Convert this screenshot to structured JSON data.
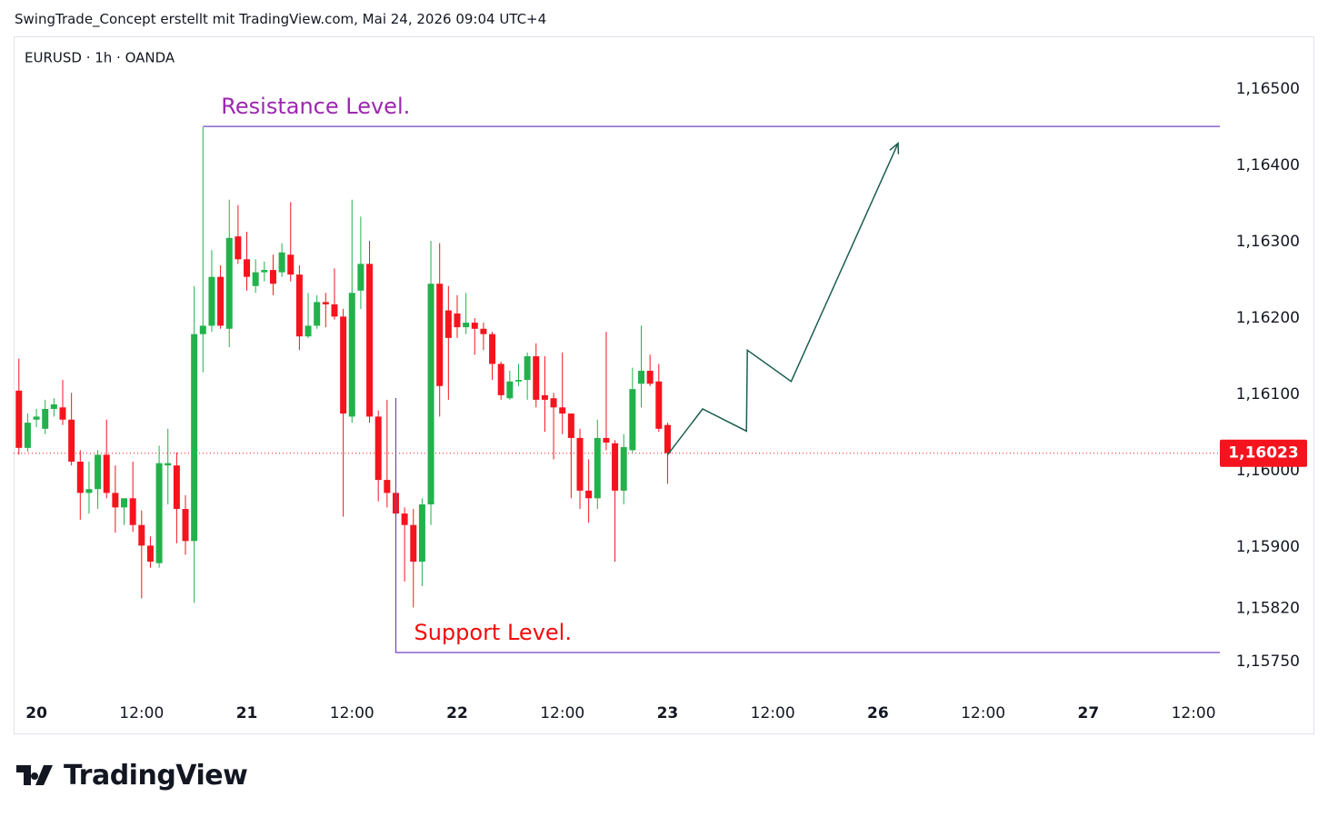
{
  "header": {
    "title": "SwingTrade_Concept erstellt mit TradingView.com, Mai 24, 2026 09:04 UTC+4"
  },
  "logo": {
    "text": "TradingView"
  },
  "chart_data": {
    "type": "candlestick",
    "title": "EURUSD · 1h · OANDA",
    "up_color": "#22b24c",
    "down_color": "#f5141e",
    "x": [
      -2,
      -1,
      0,
      1,
      2,
      3,
      4,
      5,
      6,
      7,
      8,
      9,
      10,
      11,
      12,
      13,
      14,
      15,
      16,
      17,
      18,
      19,
      20,
      21,
      22,
      23,
      24,
      25,
      26,
      27,
      28,
      29,
      30,
      31,
      32,
      33,
      34,
      35,
      36,
      37,
      38,
      39,
      40,
      41,
      42,
      43,
      44,
      45,
      46,
      47,
      48,
      49,
      50,
      51,
      52,
      53,
      54,
      55,
      56,
      57,
      58,
      59,
      60,
      61,
      62,
      63,
      64,
      65,
      66,
      67,
      68,
      69,
      70,
      71,
      72
    ],
    "open": [
      1.16105,
      1.1603,
      1.16067,
      1.16055,
      1.16081,
      1.16083,
      1.16067,
      1.16012,
      1.15971,
      1.15976,
      1.16021,
      1.15971,
      1.15952,
      1.15964,
      1.15929,
      1.15902,
      1.15879,
      1.16007,
      1.16007,
      1.1595,
      1.15908,
      1.16179,
      1.1619,
      1.16254,
      1.16186,
      1.16307,
      1.16277,
      1.16242,
      1.1626,
      1.16263,
      1.1626,
      1.16283,
      1.16257,
      1.16176,
      1.1619,
      1.16221,
      1.16218,
      1.16202,
      1.16071,
      1.16236,
      1.16271,
      1.16071,
      1.15988,
      1.15971,
      1.15944,
      1.15929,
      1.15881,
      1.15956,
      1.16245,
      1.1621,
      1.16206,
      1.16188,
      1.16194,
      1.16186,
      1.16179,
      1.1614,
      1.16095,
      1.16117,
      1.16119,
      1.1615,
      1.16099,
      1.16095,
      1.16083,
      1.16075,
      1.16043,
      1.15974,
      1.15964,
      1.16043,
      1.16036,
      1.15974,
      1.16027,
      1.16114,
      1.16131,
      1.16117,
      1.1606
    ],
    "high": [
      1.16147,
      1.16075,
      1.16081,
      1.16093,
      1.16095,
      1.16119,
      1.16102,
      1.16027,
      1.16012,
      1.16027,
      1.16067,
      1.16007,
      1.15964,
      1.16012,
      1.15948,
      1.15914,
      1.16033,
      1.16055,
      1.16024,
      1.15968,
      1.16242,
      1.1645,
      1.16289,
      1.16269,
      1.16355,
      1.16348,
      1.16313,
      1.16277,
      1.16274,
      1.16283,
      1.16298,
      1.16352,
      1.16269,
      1.16233,
      1.1623,
      1.16233,
      1.16265,
      1.16212,
      1.16355,
      1.16333,
      1.16301,
      1.16079,
      1.16093,
      1.16007,
      1.15952,
      1.1595,
      1.15964,
      1.16301,
      1.16298,
      1.16242,
      1.1623,
      1.16233,
      1.162,
      1.16194,
      1.16182,
      1.16143,
      1.16131,
      1.1614,
      1.16155,
      1.16167,
      1.1615,
      1.16102,
      1.16155,
      1.16075,
      1.16055,
      1.16015,
      1.16067,
      1.16182,
      1.1604,
      1.16048,
      1.16135,
      1.1619,
      1.16152,
      1.1614,
      1.16063
    ],
    "low": [
      1.16021,
      1.16025,
      1.16057,
      1.16048,
      1.16071,
      1.1606,
      1.16007,
      1.15936,
      1.15944,
      1.1595,
      1.15964,
      1.15919,
      1.15929,
      1.1592,
      1.15833,
      1.15873,
      1.15873,
      1.15956,
      1.15905,
      1.1589,
      1.15827,
      1.16129,
      1.16182,
      1.16186,
      1.16162,
      1.16271,
      1.16236,
      1.16233,
      1.16248,
      1.1623,
      1.16254,
      1.16248,
      1.16158,
      1.16174,
      1.16186,
      1.16188,
      1.16198,
      1.1594,
      1.16063,
      1.16212,
      1.16063,
      1.1596,
      1.15952,
      1.15762,
      1.15855,
      1.15821,
      1.15849,
      1.15929,
      1.16071,
      1.16093,
      1.16174,
      1.16179,
      1.16152,
      1.16158,
      1.16119,
      1.16093,
      1.16093,
      1.16111,
      1.16093,
      1.16083,
      1.16051,
      1.16015,
      1.16048,
      1.15964,
      1.1595,
      1.15932,
      1.1595,
      1.16027,
      1.15881,
      1.15956,
      1.16024,
      1.16083,
      1.16111,
      1.16051,
      1.15983
    ],
    "close": [
      1.1603,
      1.16063,
      1.16071,
      1.16081,
      1.16087,
      1.16067,
      1.16012,
      1.15971,
      1.15976,
      1.16021,
      1.15971,
      1.15952,
      1.15964,
      1.15929,
      1.15902,
      1.15881,
      1.1601,
      1.1601,
      1.1595,
      1.15908,
      1.16179,
      1.1619,
      1.16254,
      1.1619,
      1.16305,
      1.16277,
      1.16254,
      1.1626,
      1.16263,
      1.16245,
      1.16286,
      1.16257,
      1.16176,
      1.1619,
      1.16221,
      1.16218,
      1.16202,
      1.16075,
      1.16233,
      1.16271,
      1.16071,
      1.15988,
      1.15971,
      1.15944,
      1.15929,
      1.15881,
      1.15956,
      1.16245,
      1.16111,
      1.16174,
      1.16188,
      1.16194,
      1.16186,
      1.16179,
      1.1614,
      1.16099,
      1.16117,
      1.16119,
      1.1615,
      1.16093,
      1.16093,
      1.16083,
      1.16075,
      1.16043,
      1.15974,
      1.15964,
      1.16043,
      1.16037,
      1.15974,
      1.16031,
      1.16107,
      1.16131,
      1.16114,
      1.16055,
      1.16023
    ],
    "xlim": [
      -2.6,
      135
    ],
    "ylim": [
      1.15712,
      1.16569
    ],
    "xticks": [
      {
        "value": 0,
        "label": "20"
      },
      {
        "value": 12,
        "label": "12:00"
      },
      {
        "value": 24,
        "label": "21"
      },
      {
        "value": 36,
        "label": "12:00"
      },
      {
        "value": 48,
        "label": "22"
      },
      {
        "value": 60,
        "label": "12:00"
      },
      {
        "value": 72,
        "label": "23"
      },
      {
        "value": 84,
        "label": "12:00"
      },
      {
        "value": 96,
        "label": "26"
      },
      {
        "value": 108,
        "label": "12:00"
      },
      {
        "value": 120,
        "label": "27"
      },
      {
        "value": 132,
        "label": "12:00"
      }
    ],
    "yticks": [
      {
        "value": 1.165,
        "label": "1,16500"
      },
      {
        "value": 1.164,
        "label": "1,16400"
      },
      {
        "value": 1.163,
        "label": "1,16300"
      },
      {
        "value": 1.162,
        "label": "1,16200"
      },
      {
        "value": 1.161,
        "label": "1,16100"
      },
      {
        "value": 1.16,
        "label": "1,16000"
      },
      {
        "value": 1.159,
        "label": "1,15900"
      },
      {
        "value": 1.1582,
        "label": "1,15820"
      },
      {
        "value": 1.1575,
        "label": "1,15750"
      }
    ],
    "last_price": {
      "value": 1.16023,
      "label": "1,16023"
    },
    "levels": [
      {
        "label": "Resistance Level.",
        "value": 1.16451,
        "start": 19,
        "color": "#9c27b0"
      },
      {
        "label": "Support Level.",
        "value": 1.15762,
        "start": 41,
        "color": "#f20c0c"
      }
    ],
    "line_color": "#7046c2",
    "projection": {
      "x": [
        72,
        76,
        81,
        81.1,
        86.1,
        98.3
      ],
      "y": [
        1.16021,
        1.16081,
        1.16052,
        1.16158,
        1.16117,
        1.16429
      ],
      "color": "#1b5e50"
    }
  }
}
